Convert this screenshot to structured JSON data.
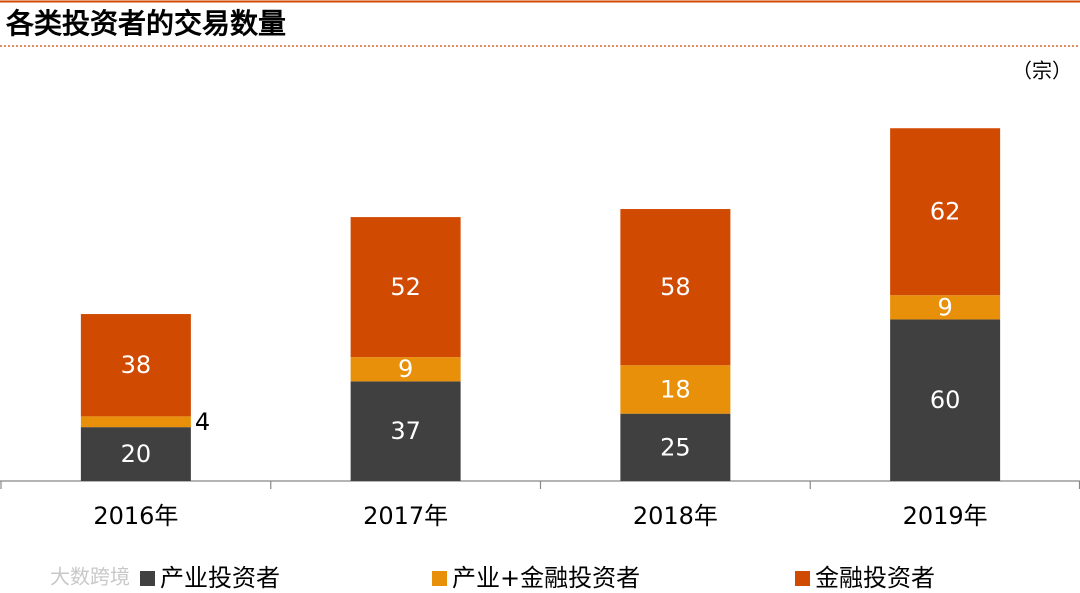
{
  "chart_data": {
    "type": "stacked_bar",
    "title": "各类投资者的交易数量",
    "unit": "（宗）",
    "categories": [
      "2016年",
      "2017年",
      "2018年",
      "2019年"
    ],
    "series": [
      {
        "name": "产业投资者",
        "color": "#404040",
        "values": [
          20,
          37,
          25,
          60
        ]
      },
      {
        "name": "产业+金融投资者",
        "color": "#e8900a",
        "values": [
          4,
          9,
          18,
          9
        ]
      },
      {
        "name": "金融投资者",
        "color": "#d04a02",
        "values": [
          38,
          52,
          58,
          62
        ]
      }
    ],
    "ylim": [
      0,
      140
    ],
    "legend": "bottom",
    "watermark": "大数跨境"
  }
}
